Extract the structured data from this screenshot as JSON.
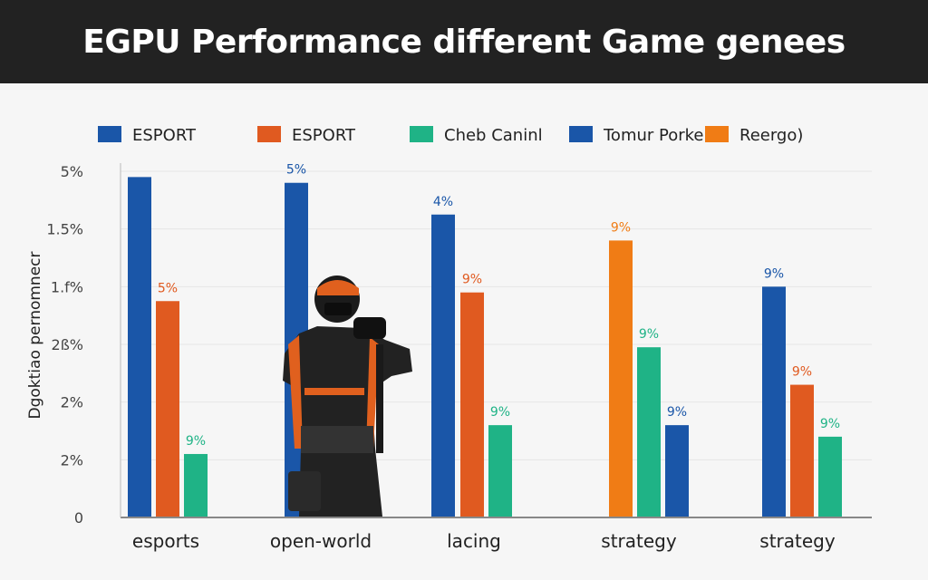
{
  "chart_data": {
    "type": "bar",
    "title": "EGPU Performance different Game genees",
    "ylabel": "Dgoktiao pernomnecr",
    "xlabel": "",
    "y_tick_labels": [
      "0",
      "2%",
      "2%",
      "2ß%",
      "1.f%",
      "1.5%",
      "5%"
    ],
    "ylim_ticks": [
      0,
      6
    ],
    "grid": true,
    "legend_placement": "top",
    "legend": [
      {
        "name": "ESPORT",
        "color": "#1a56a8"
      },
      {
        "name": "ESPORT",
        "color": "#e05a20"
      },
      {
        "name": "Cheb Caninl",
        "color": "#1fb386"
      },
      {
        "name": "Tomur Porke",
        "color": "#1a56a8"
      },
      {
        "name": "Reergo)",
        "color": "#f07c15"
      }
    ],
    "categories": [
      "esports",
      "open-world",
      "lacing",
      "strategy",
      "strategy"
    ],
    "groups": [
      {
        "category": "esports",
        "bars": [
          {
            "color": "#1a56a8",
            "value": 5.9,
            "label": ""
          },
          {
            "color": "#e05a20",
            "value": 3.75,
            "label": "5%"
          },
          {
            "color": "#1fb386",
            "value": 1.1,
            "label": "9%"
          }
        ]
      },
      {
        "category": "open-world",
        "bars": [
          {
            "color": "#1a56a8",
            "value": 5.8,
            "label": "5%"
          }
        ]
      },
      {
        "category": "lacing",
        "bars": [
          {
            "color": "#1a56a8",
            "value": 5.25,
            "label": "4%"
          },
          {
            "color": "#e05a20",
            "value": 3.9,
            "label": "9%"
          },
          {
            "color": "#1fb386",
            "value": 1.6,
            "label": "9%"
          }
        ]
      },
      {
        "category": "strategy",
        "bars": [
          {
            "color": "#f07c15",
            "value": 4.8,
            "label": "9%"
          },
          {
            "color": "#1fb386",
            "value": 2.95,
            "label": "9%"
          },
          {
            "color": "#1a56a8",
            "value": 1.6,
            "label": "9%"
          }
        ]
      },
      {
        "category": "strategy",
        "bars": [
          {
            "color": "#1a56a8",
            "value": 4.0,
            "label": "9%"
          },
          {
            "color": "#e05a20",
            "value": 2.3,
            "label": "9%"
          },
          {
            "color": "#1fb386",
            "value": 1.4,
            "label": "9%"
          }
        ]
      }
    ]
  }
}
